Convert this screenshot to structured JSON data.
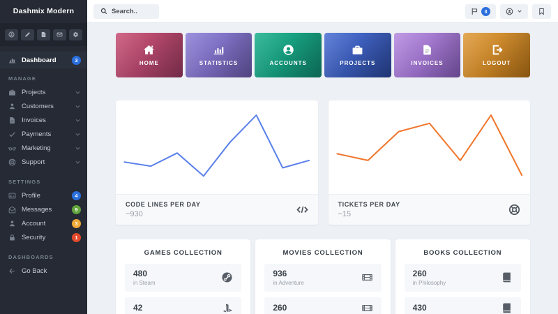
{
  "sidebar": {
    "brand": "Dashmix Modern",
    "quick_actions": [
      {
        "icon": "user-circle"
      },
      {
        "icon": "pencil"
      },
      {
        "icon": "file"
      },
      {
        "icon": "envelope"
      },
      {
        "icon": "gear"
      }
    ],
    "dashboard": {
      "label": "Dashboard",
      "icon": "chart",
      "badge": "3",
      "badge_color": "#2b6fdd"
    },
    "sections": [
      {
        "label": "MANAGE",
        "items": [
          {
            "label": "Projects",
            "icon": "briefcase"
          },
          {
            "label": "Customers",
            "icon": "user"
          },
          {
            "label": "Invoices",
            "icon": "file"
          },
          {
            "label": "Payments",
            "icon": "check"
          },
          {
            "label": "Marketing",
            "icon": "glasses"
          },
          {
            "label": "Support",
            "icon": "lifering"
          }
        ]
      },
      {
        "label": "SETTINGS",
        "items": [
          {
            "label": "Profile",
            "icon": "id-card",
            "badge": "4",
            "badge_color": "#2b6fdd"
          },
          {
            "label": "Messages",
            "icon": "envelope-open",
            "badge": "9",
            "badge_color": "#62a43c"
          },
          {
            "label": "Account",
            "icon": "user",
            "badge": "3",
            "badge_color": "#efa836"
          },
          {
            "label": "Security",
            "icon": "lock",
            "badge": "1",
            "badge_color": "#e3492b"
          }
        ]
      },
      {
        "label": "DASHBOARDS",
        "items": [
          {
            "label": "Go Back",
            "icon": "arrow-left"
          }
        ]
      }
    ]
  },
  "header": {
    "search": {
      "placeholder": "Search..",
      "icon": "search"
    },
    "actions": [
      {
        "name": "notifications",
        "icon": "flag",
        "badge": "3",
        "badge_color": "#2b6fdd"
      },
      {
        "name": "user-menu",
        "icon": "user-circle",
        "chevron": true
      },
      {
        "name": "bookmark",
        "icon": "bookmark"
      }
    ]
  },
  "tiles": [
    {
      "label": "HOME",
      "icon": "home",
      "gradient": {
        "from": "#c85175",
        "to": "#8e3558"
      }
    },
    {
      "label": "STATISTICS",
      "icon": "bar-chart",
      "gradient": {
        "from": "#8d80d8",
        "to": "#64549f"
      }
    },
    {
      "label": "ACCOUNTS",
      "icon": "user-circle-solid",
      "gradient": {
        "from": "#1cb08d",
        "to": "#0e7f66"
      }
    },
    {
      "label": "PROJECTS",
      "icon": "briefcase",
      "gradient": {
        "from": "#4a6fd4",
        "to": "#27418f"
      }
    },
    {
      "label": "INVOICES",
      "icon": "file",
      "gradient": {
        "from": "#b68ae0",
        "to": "#7e57ad"
      }
    },
    {
      "label": "LOGOUT",
      "icon": "logout",
      "gradient": {
        "from": "#e09b3a",
        "to": "#a96a14"
      }
    }
  ],
  "charts": [
    {
      "title": "CODE LINES PER DAY",
      "value": "~930",
      "icon": "code"
    },
    {
      "title": "TICKETS PER DAY",
      "value": "~15",
      "icon": "lifering"
    }
  ],
  "chart_data": [
    {
      "type": "line",
      "title": "CODE LINES PER DAY",
      "summary_value": "~930",
      "color": "#5b80ea",
      "grid": false,
      "axes": "hidden",
      "x": [
        1,
        2,
        3,
        4,
        5,
        6,
        7,
        8
      ],
      "series": [
        {
          "name": "Code lines per day",
          "values": [
            32,
            27,
            43,
            15,
            56,
            89,
            25,
            34
          ]
        }
      ]
    },
    {
      "type": "line",
      "title": "TICKETS PER DAY",
      "summary_value": "~15",
      "color": "#f0772e",
      "grid": false,
      "axes": "hidden",
      "x": [
        1,
        2,
        3,
        4,
        5,
        6,
        7
      ],
      "series": [
        {
          "name": "Tickets per day",
          "values": [
            42,
            34,
            69,
            79,
            34,
            89,
            16
          ]
        }
      ]
    }
  ],
  "collections": [
    {
      "title": "GAMES COLLECTION",
      "rows": [
        {
          "value": "480",
          "caption": "in Steam",
          "icon": "steam"
        },
        {
          "value": "42",
          "caption": "",
          "icon": "playstation"
        }
      ]
    },
    {
      "title": "MOVIES COLLECTION",
      "rows": [
        {
          "value": "936",
          "caption": "in Adventure",
          "icon": "film"
        },
        {
          "value": "260",
          "caption": "",
          "icon": "film"
        }
      ]
    },
    {
      "title": "BOOKS COLLECTION",
      "rows": [
        {
          "value": "260",
          "caption": "in Philosophy",
          "icon": "book"
        },
        {
          "value": "430",
          "caption": "",
          "icon": "book"
        }
      ]
    }
  ]
}
